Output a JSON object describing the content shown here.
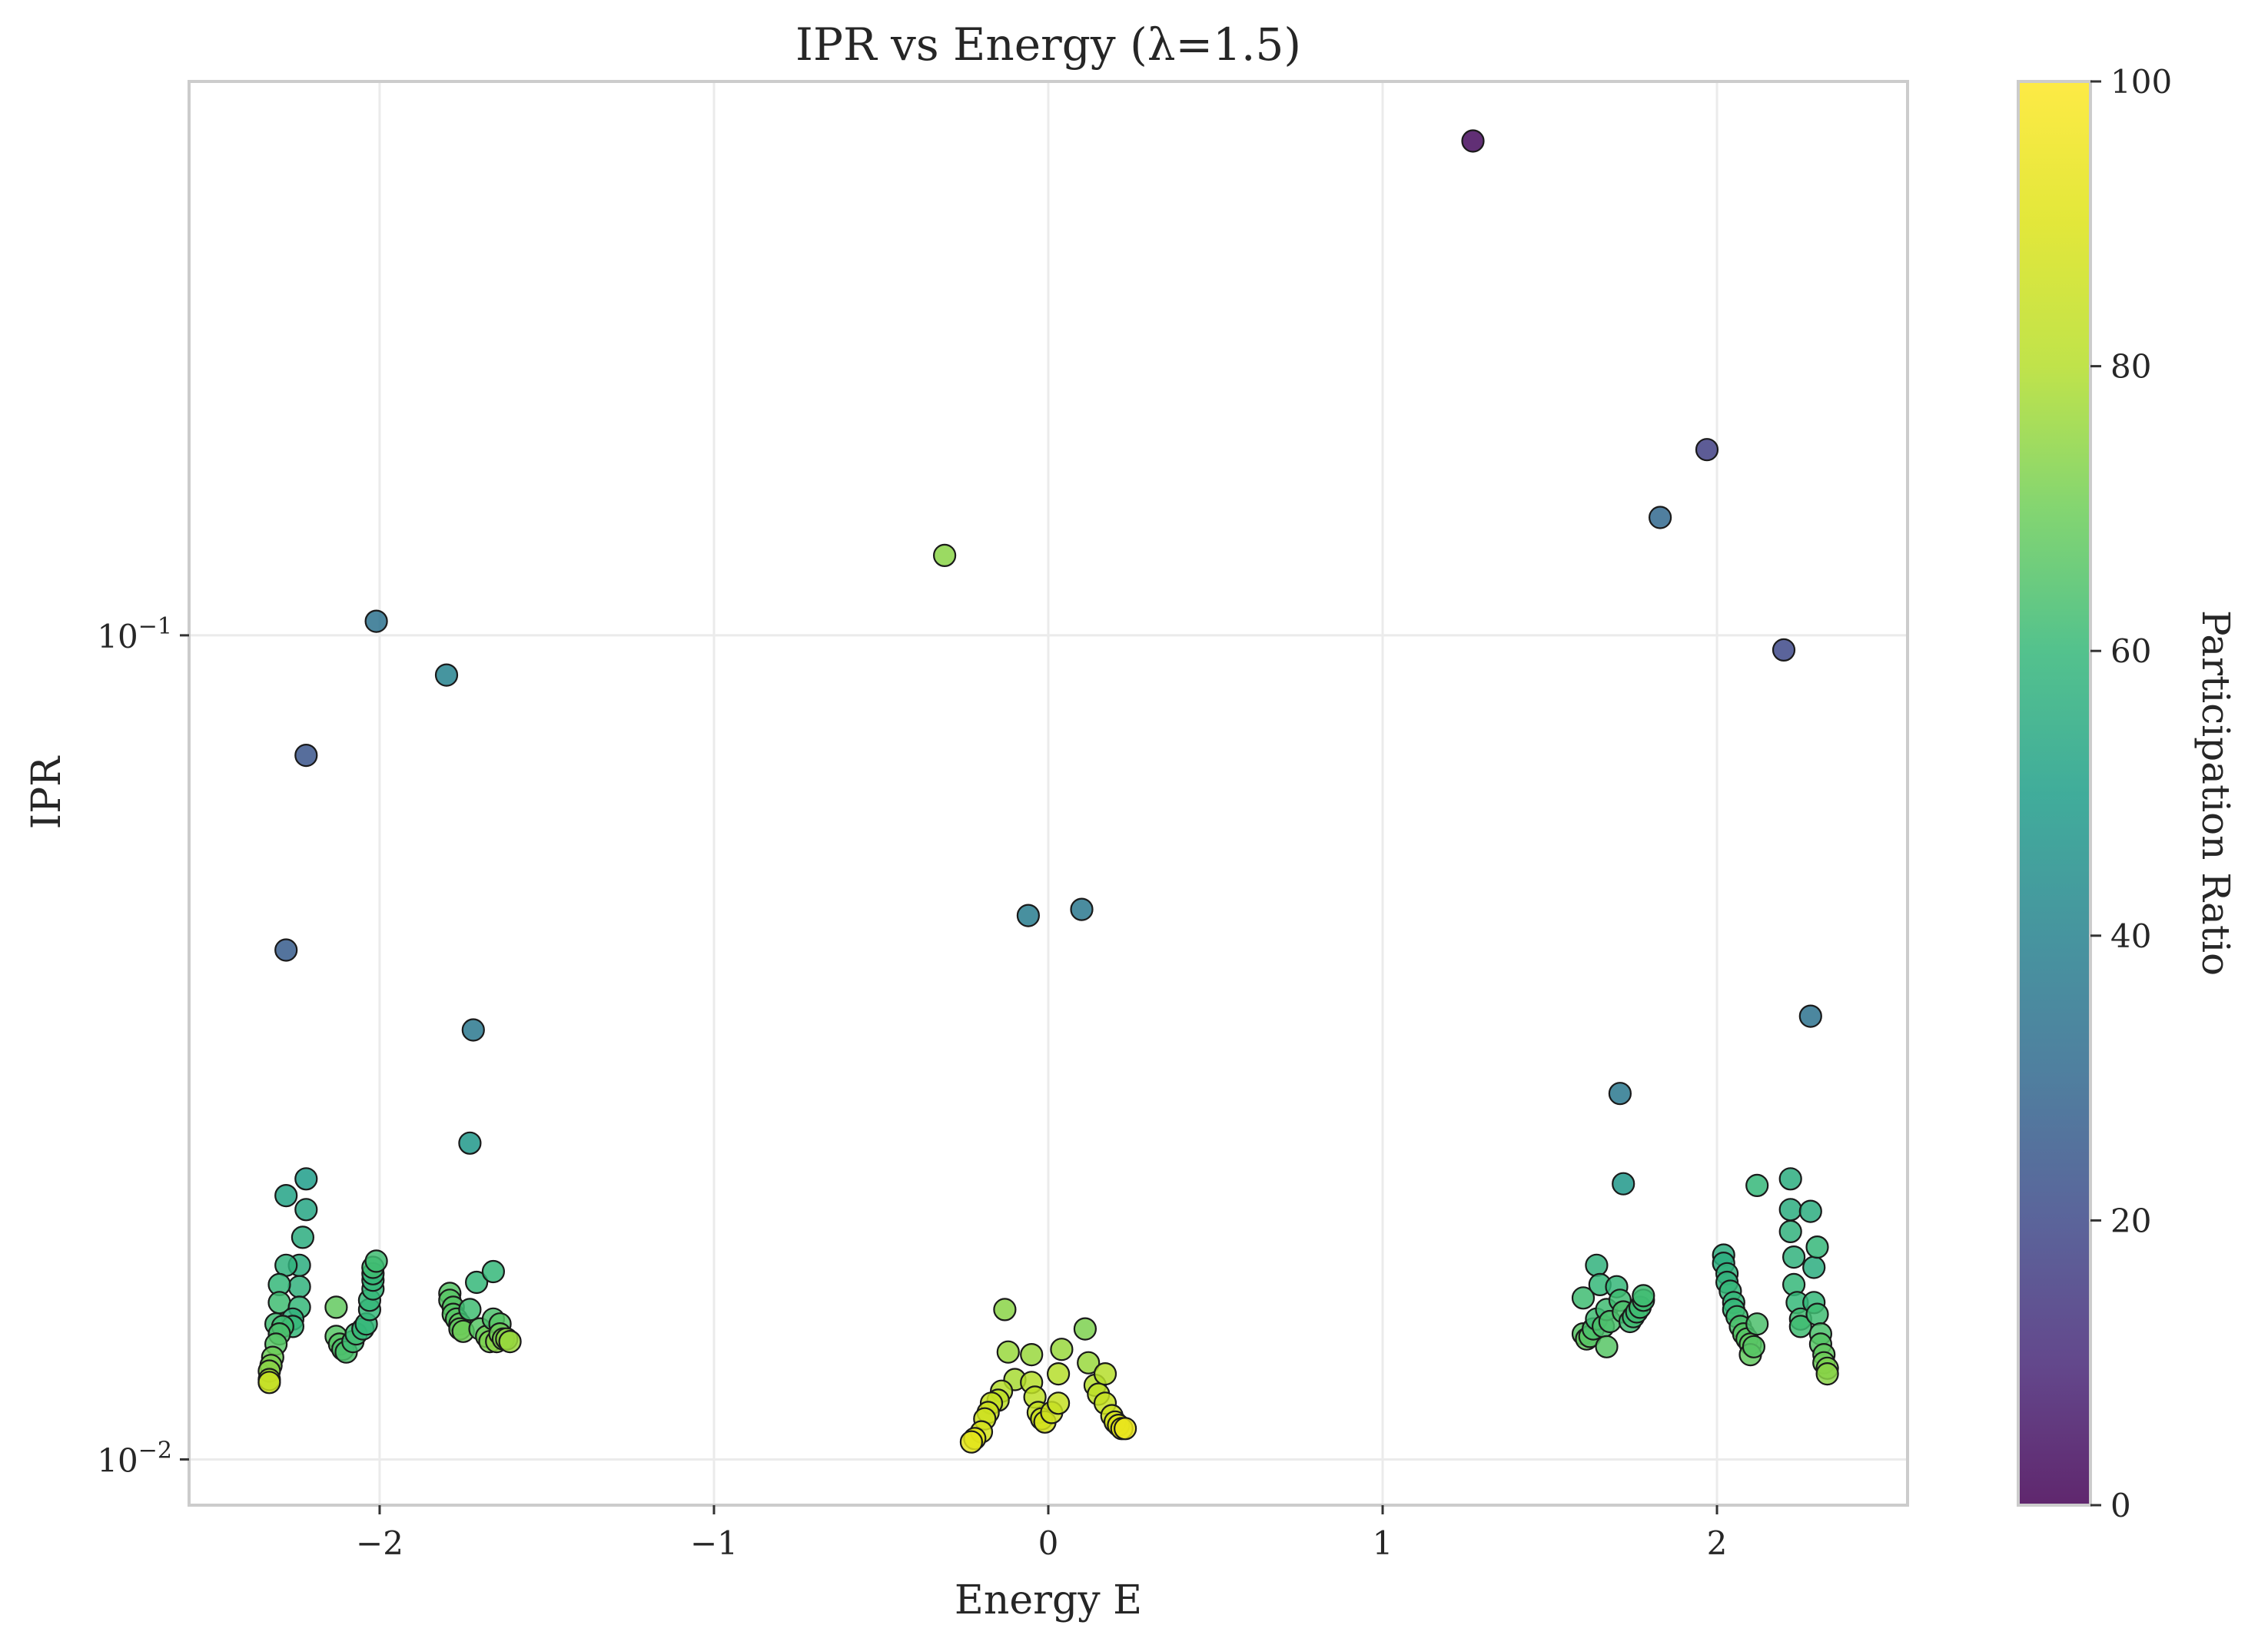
{
  "chart_data": {
    "type": "scatter",
    "title": "IPR vs Energy (λ=1.5)",
    "xlabel": "Energy E",
    "ylabel": "IPR",
    "x_scale": "linear",
    "y_scale": "log",
    "xlim": [
      -2.57,
      2.57
    ],
    "ylim": [
      0.0088,
      0.47
    ],
    "x_ticks": [
      -2,
      -1,
      0,
      1,
      2
    ],
    "x_tick_labels": [
      "−2",
      "−1",
      "0",
      "1",
      "2"
    ],
    "y_ticks": [
      0.01,
      0.1
    ],
    "y_tick_labels": [
      {
        "base": "10",
        "exp": "−2"
      },
      {
        "base": "10",
        "exp": "−1"
      }
    ],
    "grid": true,
    "colorbar": {
      "label": "Participation Ratio",
      "colormap": "viridis",
      "range": [
        0,
        100
      ],
      "ticks": [
        0,
        20,
        40,
        60,
        80,
        100
      ],
      "tick_labels": [
        "0",
        "20",
        "40",
        "60",
        "80",
        "100"
      ]
    },
    "columns": [
      "energy",
      "ipr",
      "participation_ratio"
    ],
    "points": [
      [
        1.27,
        0.398,
        2.5
      ],
      [
        1.97,
        0.168,
        17
      ],
      [
        1.83,
        0.139,
        30
      ],
      [
        2.2,
        0.096,
        20
      ],
      [
        2.28,
        0.0345,
        34
      ],
      [
        1.71,
        0.0278,
        36
      ],
      [
        1.72,
        0.0216,
        48
      ],
      [
        -0.31,
        0.125,
        74
      ],
      [
        -0.06,
        0.0457,
        38
      ],
      [
        0.1,
        0.0465,
        36
      ],
      [
        -2.01,
        0.104,
        34
      ],
      [
        -1.8,
        0.0895,
        40
      ],
      [
        -2.22,
        0.0715,
        24
      ],
      [
        -2.28,
        0.0415,
        26
      ],
      [
        -1.72,
        0.0332,
        36
      ],
      [
        -1.73,
        0.0242,
        48
      ],
      [
        -2.22,
        0.0219,
        50
      ],
      [
        -2.28,
        0.0209,
        52
      ],
      [
        -2.22,
        0.0201,
        53
      ],
      [
        -2.23,
        0.0186,
        56
      ],
      [
        -2.24,
        0.0172,
        56
      ],
      [
        -2.28,
        0.0172,
        58
      ],
      [
        -2.24,
        0.0162,
        58
      ],
      [
        -2.3,
        0.0163,
        60
      ],
      [
        -2.3,
        0.0155,
        62
      ],
      [
        -2.24,
        0.0153,
        60
      ],
      [
        -2.26,
        0.0148,
        58
      ],
      [
        -2.31,
        0.0146,
        62
      ],
      [
        -2.26,
        0.0145,
        60
      ],
      [
        -2.29,
        0.0145,
        62
      ],
      [
        -2.3,
        0.0142,
        64
      ],
      [
        -2.31,
        0.0138,
        66
      ],
      [
        -2.32,
        0.0133,
        70
      ],
      [
        -2.325,
        0.013,
        72
      ],
      [
        -2.33,
        0.0128,
        74
      ],
      [
        -2.33,
        0.0125,
        78
      ],
      [
        -2.33,
        0.0124,
        85
      ],
      [
        -2.13,
        0.0153,
        68
      ],
      [
        -2.13,
        0.0141,
        66
      ],
      [
        -2.12,
        0.0138,
        66
      ],
      [
        -2.11,
        0.0136,
        64
      ],
      [
        -2.1,
        0.0135,
        64
      ],
      [
        -2.08,
        0.0139,
        62
      ],
      [
        -2.07,
        0.0142,
        62
      ],
      [
        -2.05,
        0.0144,
        60
      ],
      [
        -2.04,
        0.0146,
        60
      ],
      [
        -2.03,
        0.0152,
        60
      ],
      [
        -2.03,
        0.0156,
        60
      ],
      [
        -2.02,
        0.0161,
        60
      ],
      [
        -2.02,
        0.0165,
        60
      ],
      [
        -2.02,
        0.0168,
        60
      ],
      [
        -2.02,
        0.0171,
        62
      ],
      [
        -2.01,
        0.0174,
        62
      ],
      [
        -1.79,
        0.0159,
        66
      ],
      [
        -1.79,
        0.0156,
        66
      ],
      [
        -1.78,
        0.0153,
        66
      ],
      [
        -1.78,
        0.015,
        66
      ],
      [
        -1.77,
        0.0148,
        66
      ],
      [
        -1.76,
        0.0146,
        68
      ],
      [
        -1.76,
        0.0144,
        68
      ],
      [
        -1.75,
        0.0143,
        70
      ],
      [
        -1.73,
        0.0152,
        62
      ],
      [
        -1.71,
        0.0164,
        60
      ],
      [
        -1.7,
        0.0144,
        66
      ],
      [
        -1.68,
        0.0141,
        70
      ],
      [
        -1.67,
        0.0139,
        72
      ],
      [
        -1.66,
        0.0148,
        64
      ],
      [
        -1.65,
        0.0139,
        74
      ],
      [
        -1.64,
        0.0146,
        66
      ],
      [
        -1.64,
        0.0142,
        70
      ],
      [
        -1.63,
        0.014,
        72
      ],
      [
        -1.62,
        0.014,
        74
      ],
      [
        -1.61,
        0.0139,
        76
      ],
      [
        -1.66,
        0.0169,
        60
      ],
      [
        -0.13,
        0.0152,
        74
      ],
      [
        -0.12,
        0.0135,
        76
      ],
      [
        -0.1,
        0.0125,
        78
      ],
      [
        -0.14,
        0.0121,
        80
      ],
      [
        -0.15,
        0.0118,
        82
      ],
      [
        -0.17,
        0.0117,
        84
      ],
      [
        -0.18,
        0.0114,
        86
      ],
      [
        -0.19,
        0.0112,
        86
      ],
      [
        -0.2,
        0.0108,
        88
      ],
      [
        -0.22,
        0.0106,
        90
      ],
      [
        -0.23,
        0.0105,
        92
      ],
      [
        -0.05,
        0.0134,
        76
      ],
      [
        -0.05,
        0.0124,
        80
      ],
      [
        -0.04,
        0.0119,
        82
      ],
      [
        -0.03,
        0.0114,
        84
      ],
      [
        -0.02,
        0.0112,
        86
      ],
      [
        -0.01,
        0.0111,
        88
      ],
      [
        0.01,
        0.0114,
        86
      ],
      [
        0.03,
        0.0117,
        84
      ],
      [
        0.03,
        0.0127,
        80
      ],
      [
        0.04,
        0.0136,
        76
      ],
      [
        0.11,
        0.0144,
        72
      ],
      [
        0.12,
        0.0131,
        76
      ],
      [
        0.14,
        0.0123,
        80
      ],
      [
        0.15,
        0.012,
        82
      ],
      [
        0.17,
        0.0117,
        84
      ],
      [
        0.17,
        0.0127,
        80
      ],
      [
        0.19,
        0.0113,
        86
      ],
      [
        0.2,
        0.0111,
        88
      ],
      [
        0.21,
        0.011,
        90
      ],
      [
        0.22,
        0.0109,
        92
      ],
      [
        0.23,
        0.0109,
        94
      ],
      [
        1.6,
        0.0157,
        62
      ],
      [
        1.6,
        0.0142,
        66
      ],
      [
        1.61,
        0.014,
        68
      ],
      [
        1.62,
        0.0141,
        66
      ],
      [
        1.63,
        0.0144,
        64
      ],
      [
        1.64,
        0.0148,
        62
      ],
      [
        1.64,
        0.0172,
        58
      ],
      [
        1.65,
        0.0163,
        60
      ],
      [
        1.66,
        0.0145,
        64
      ],
      [
        1.67,
        0.0137,
        66
      ],
      [
        1.67,
        0.0152,
        62
      ],
      [
        1.68,
        0.0147,
        64
      ],
      [
        1.7,
        0.0162,
        60
      ],
      [
        1.71,
        0.0156,
        62
      ],
      [
        1.72,
        0.0151,
        64
      ],
      [
        1.74,
        0.0147,
        62
      ],
      [
        1.75,
        0.0149,
        62
      ],
      [
        1.76,
        0.0151,
        62
      ],
      [
        1.77,
        0.0153,
        62
      ],
      [
        1.78,
        0.0156,
        62
      ],
      [
        1.78,
        0.0158,
        62
      ],
      [
        2.02,
        0.0177,
        56
      ],
      [
        2.02,
        0.0173,
        56
      ],
      [
        2.03,
        0.0168,
        58
      ],
      [
        2.03,
        0.0164,
        58
      ],
      [
        2.04,
        0.016,
        60
      ],
      [
        2.05,
        0.0155,
        60
      ],
      [
        2.05,
        0.0152,
        60
      ],
      [
        2.06,
        0.0149,
        62
      ],
      [
        2.07,
        0.0145,
        64
      ],
      [
        2.08,
        0.0142,
        66
      ],
      [
        2.09,
        0.014,
        66
      ],
      [
        2.1,
        0.0138,
        68
      ],
      [
        2.1,
        0.0134,
        68
      ],
      [
        2.11,
        0.0137,
        66
      ],
      [
        2.12,
        0.0146,
        64
      ],
      [
        2.12,
        0.0215,
        60
      ],
      [
        2.22,
        0.0219,
        56
      ],
      [
        2.22,
        0.0201,
        56
      ],
      [
        2.22,
        0.0189,
        58
      ],
      [
        2.23,
        0.0176,
        58
      ],
      [
        2.23,
        0.0163,
        60
      ],
      [
        2.24,
        0.0155,
        60
      ],
      [
        2.25,
        0.0148,
        62
      ],
      [
        2.25,
        0.0145,
        62
      ],
      [
        2.28,
        0.02,
        56
      ],
      [
        2.29,
        0.0171,
        56
      ],
      [
        2.29,
        0.0155,
        60
      ],
      [
        2.3,
        0.015,
        62
      ],
      [
        2.3,
        0.0181,
        60
      ],
      [
        2.31,
        0.0142,
        64
      ],
      [
        2.31,
        0.0138,
        66
      ],
      [
        2.32,
        0.0134,
        68
      ],
      [
        2.32,
        0.0131,
        70
      ],
      [
        2.33,
        0.0129,
        72
      ],
      [
        2.33,
        0.0127,
        74
      ]
    ]
  }
}
